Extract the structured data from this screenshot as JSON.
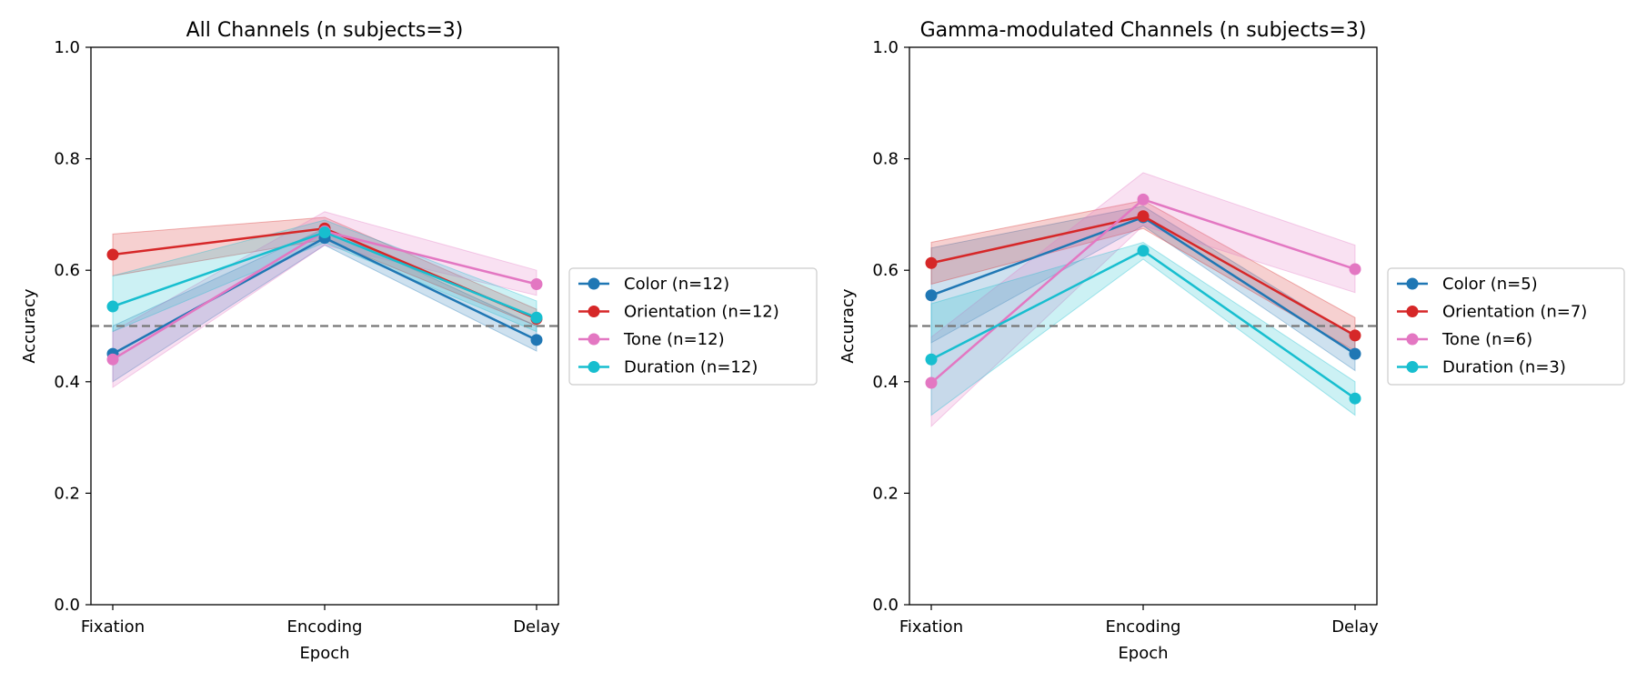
{
  "chart_data": [
    {
      "type": "line",
      "title": "All Channels (n subjects=3)",
      "xlabel": "Epoch",
      "ylabel": "Accuracy",
      "categories": [
        "Fixation",
        "Encoding",
        "Delay"
      ],
      "ylim": [
        0,
        1.0
      ],
      "yticks": [
        "0.0",
        "0.2",
        "0.4",
        "0.6",
        "0.8",
        "1.0"
      ],
      "reference_line": {
        "y": 0.5,
        "style": "dashed",
        "color": "#777777"
      },
      "legend_position": "right",
      "grid": false,
      "series": [
        {
          "name": "Color (n=12)",
          "color": "#1f77b4",
          "values": [
            0.45,
            0.658,
            0.475
          ],
          "band_lower": [
            0.4,
            0.645,
            0.455
          ],
          "band_upper": [
            0.5,
            0.675,
            0.5
          ]
        },
        {
          "name": "Orientation (n=12)",
          "color": "#d62728",
          "values": [
            0.628,
            0.675,
            0.513
          ],
          "band_lower": [
            0.59,
            0.655,
            0.5
          ],
          "band_upper": [
            0.665,
            0.695,
            0.53
          ]
        },
        {
          "name": "Tone (n=12)",
          "color": "#e377c2",
          "values": [
            0.44,
            0.67,
            0.575
          ],
          "band_lower": [
            0.39,
            0.645,
            0.555
          ],
          "band_upper": [
            0.49,
            0.705,
            0.6
          ]
        },
        {
          "name": "Duration (n=12)",
          "color": "#17becf",
          "values": [
            0.535,
            0.668,
            0.515
          ],
          "band_lower": [
            0.49,
            0.65,
            0.49
          ],
          "band_upper": [
            0.59,
            0.69,
            0.545
          ]
        }
      ]
    },
    {
      "type": "line",
      "title": "Gamma-modulated Channels (n subjects=3)",
      "xlabel": "Epoch",
      "ylabel": "Accuracy",
      "categories": [
        "Fixation",
        "Encoding",
        "Delay"
      ],
      "ylim": [
        0,
        1.0
      ],
      "yticks": [
        "0.0",
        "0.2",
        "0.4",
        "0.6",
        "0.8",
        "1.0"
      ],
      "reference_line": {
        "y": 0.5,
        "style": "dashed",
        "color": "#777777"
      },
      "legend_position": "right",
      "grid": false,
      "series": [
        {
          "name": "Color (n=5)",
          "color": "#1f77b4",
          "values": [
            0.555,
            0.695,
            0.45
          ],
          "band_lower": [
            0.47,
            0.68,
            0.42
          ],
          "band_upper": [
            0.64,
            0.715,
            0.48
          ]
        },
        {
          "name": "Orientation (n=7)",
          "color": "#d62728",
          "values": [
            0.613,
            0.697,
            0.483
          ],
          "band_lower": [
            0.575,
            0.675,
            0.455
          ],
          "band_upper": [
            0.65,
            0.725,
            0.515
          ]
        },
        {
          "name": "Tone (n=6)",
          "color": "#e377c2",
          "values": [
            0.398,
            0.727,
            0.602
          ],
          "band_lower": [
            0.32,
            0.68,
            0.56
          ],
          "band_upper": [
            0.48,
            0.775,
            0.645
          ]
        },
        {
          "name": "Duration (n=3)",
          "color": "#17becf",
          "values": [
            0.44,
            0.635,
            0.37
          ],
          "band_lower": [
            0.34,
            0.62,
            0.34
          ],
          "band_upper": [
            0.54,
            0.65,
            0.4
          ]
        }
      ]
    }
  ]
}
